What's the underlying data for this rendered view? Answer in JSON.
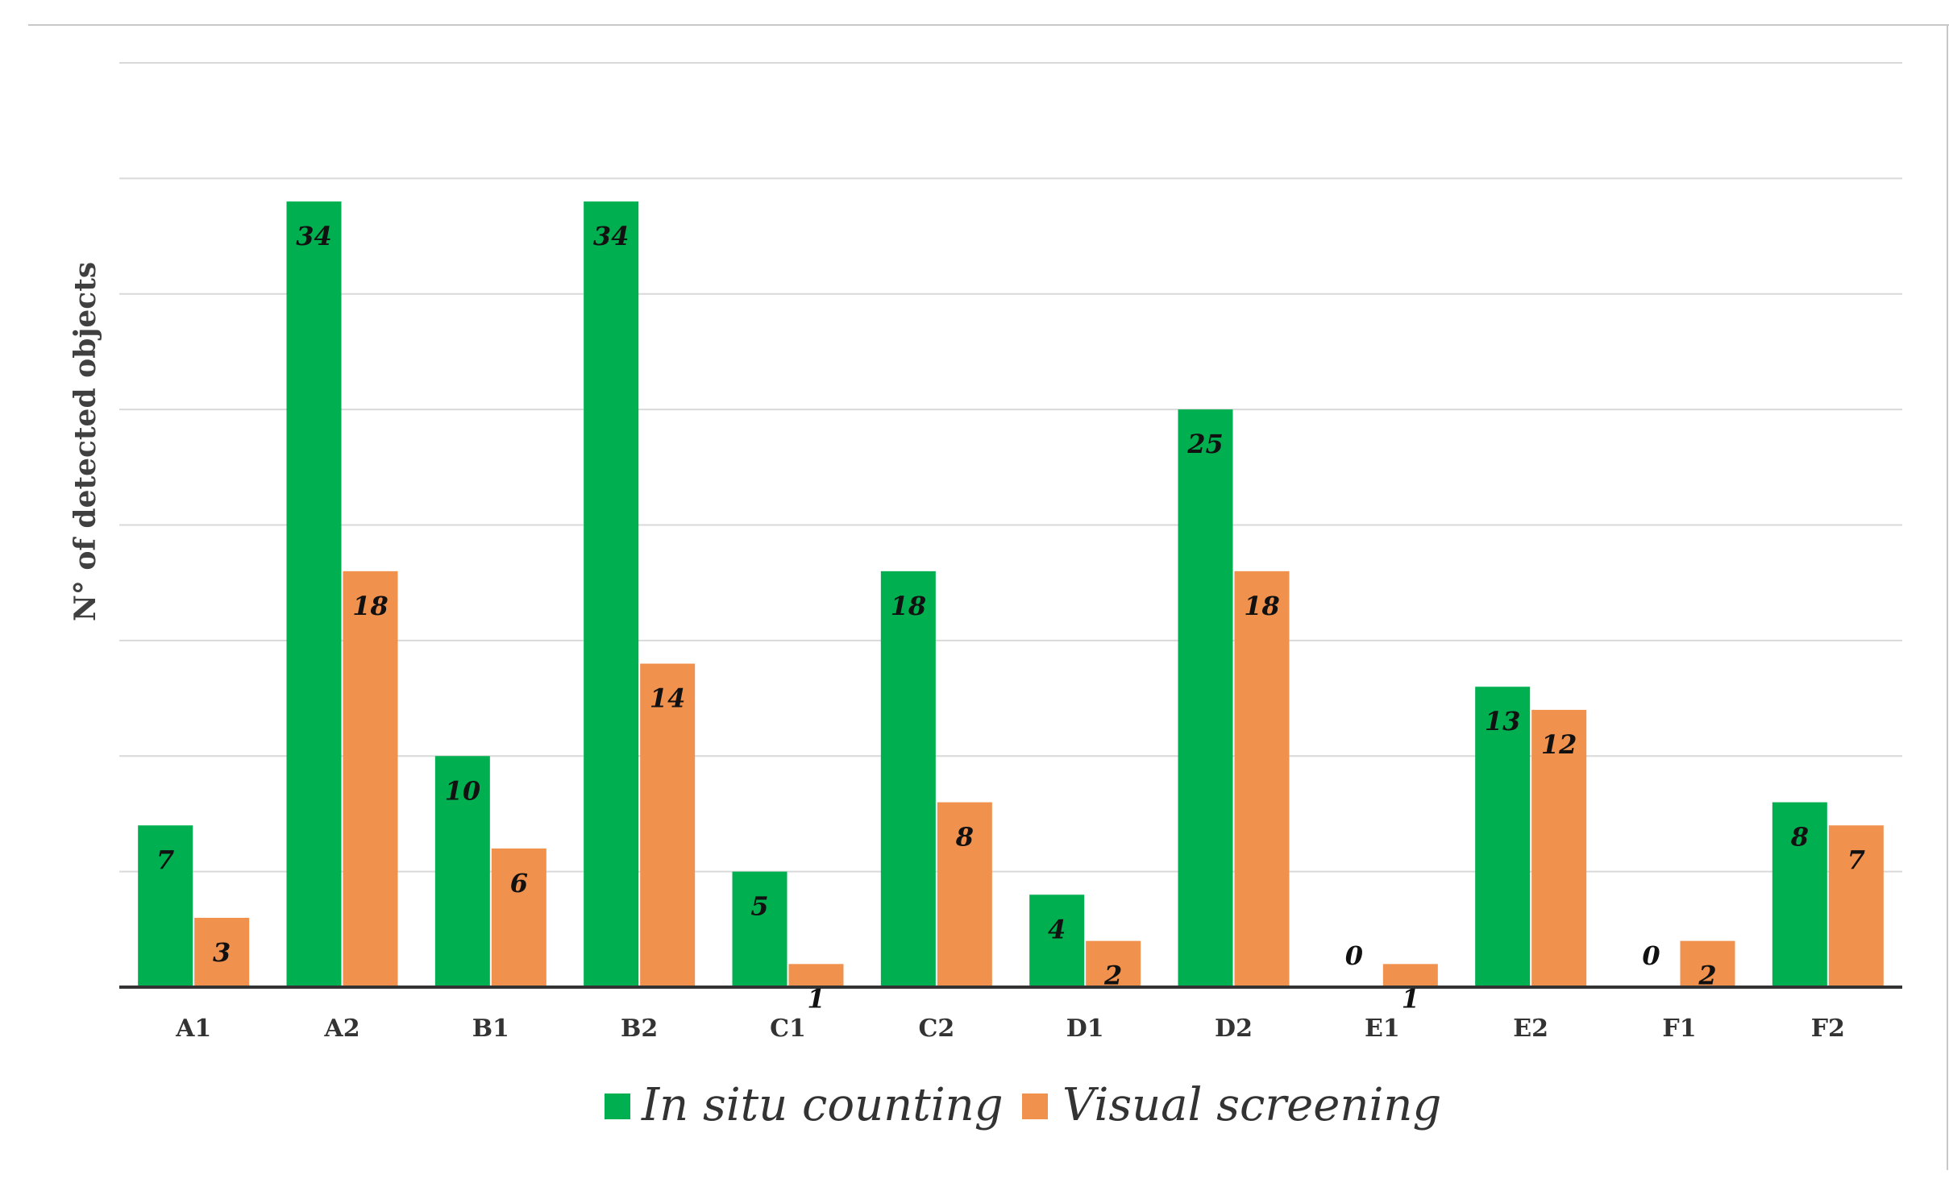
{
  "chart_data": {
    "type": "bar",
    "title": "",
    "xlabel": "",
    "ylabel": "N° of detected objects",
    "ylim": [
      0,
      40
    ],
    "grid": true,
    "legend_position": "bottom",
    "categories": [
      "A1",
      "A2",
      "B1",
      "B2",
      "C1",
      "C2",
      "D1",
      "D2",
      "E1",
      "E2",
      "F1",
      "F2"
    ],
    "series": [
      {
        "name": "In situ counting",
        "color": "#00b050",
        "values": [
          7,
          34,
          10,
          34,
          5,
          18,
          4,
          25,
          0,
          13,
          0,
          8
        ]
      },
      {
        "name": "Visual screening",
        "color": "#f0914e",
        "values": [
          3,
          18,
          6,
          14,
          1,
          8,
          2,
          18,
          1,
          12,
          2,
          7
        ]
      }
    ]
  }
}
